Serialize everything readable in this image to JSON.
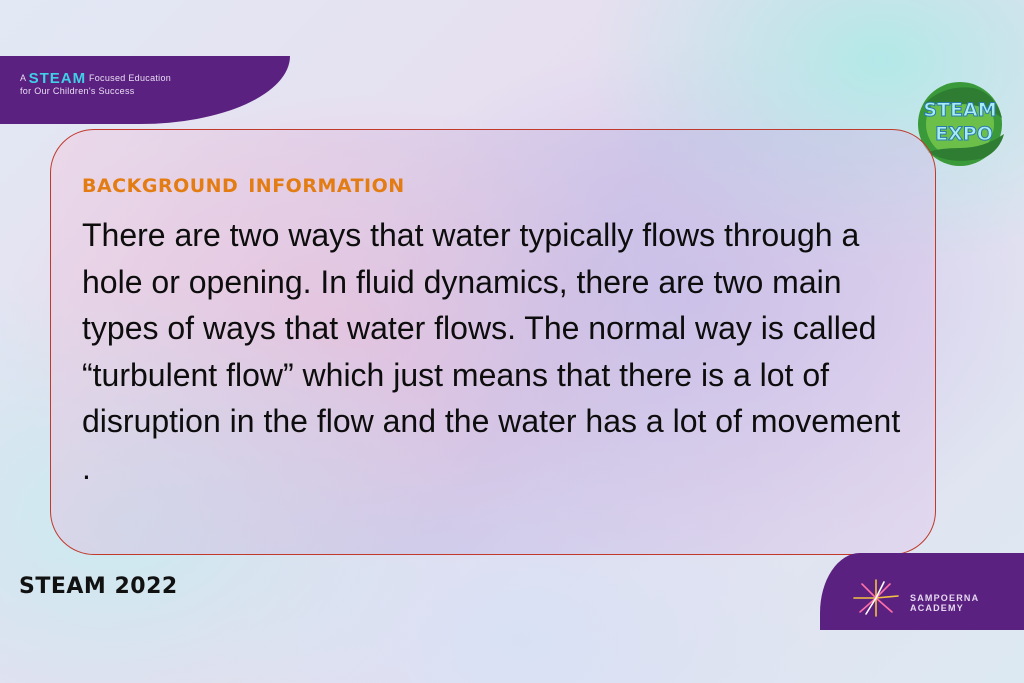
{
  "tagline": {
    "prefix": "A",
    "brand": "STEAM",
    "suffix": "Focused Education",
    "line2": "for Our Children's Success"
  },
  "expo_logo": {
    "line1": "STEAM",
    "line2": "EXPO"
  },
  "info_card": {
    "title": "Background Information",
    "body": "There are two ways that water typically flows through a hole or opening. In fluid dynamics, there are two main types of ways that water flows. The normal way is called “turbulent flow” which just means that there is a lot of disruption in the flow and  the water has a lot of movement ."
  },
  "footer": {
    "steam_year": "STEAM 2022",
    "academy_line1": "SAMPOERNA",
    "academy_line2": "ACADEMY"
  },
  "colors": {
    "brand_purple": "#5b2180",
    "title_orange": "#e37d13",
    "card_border": "#c0392b",
    "steam_cyan": "#3fd0e6"
  }
}
